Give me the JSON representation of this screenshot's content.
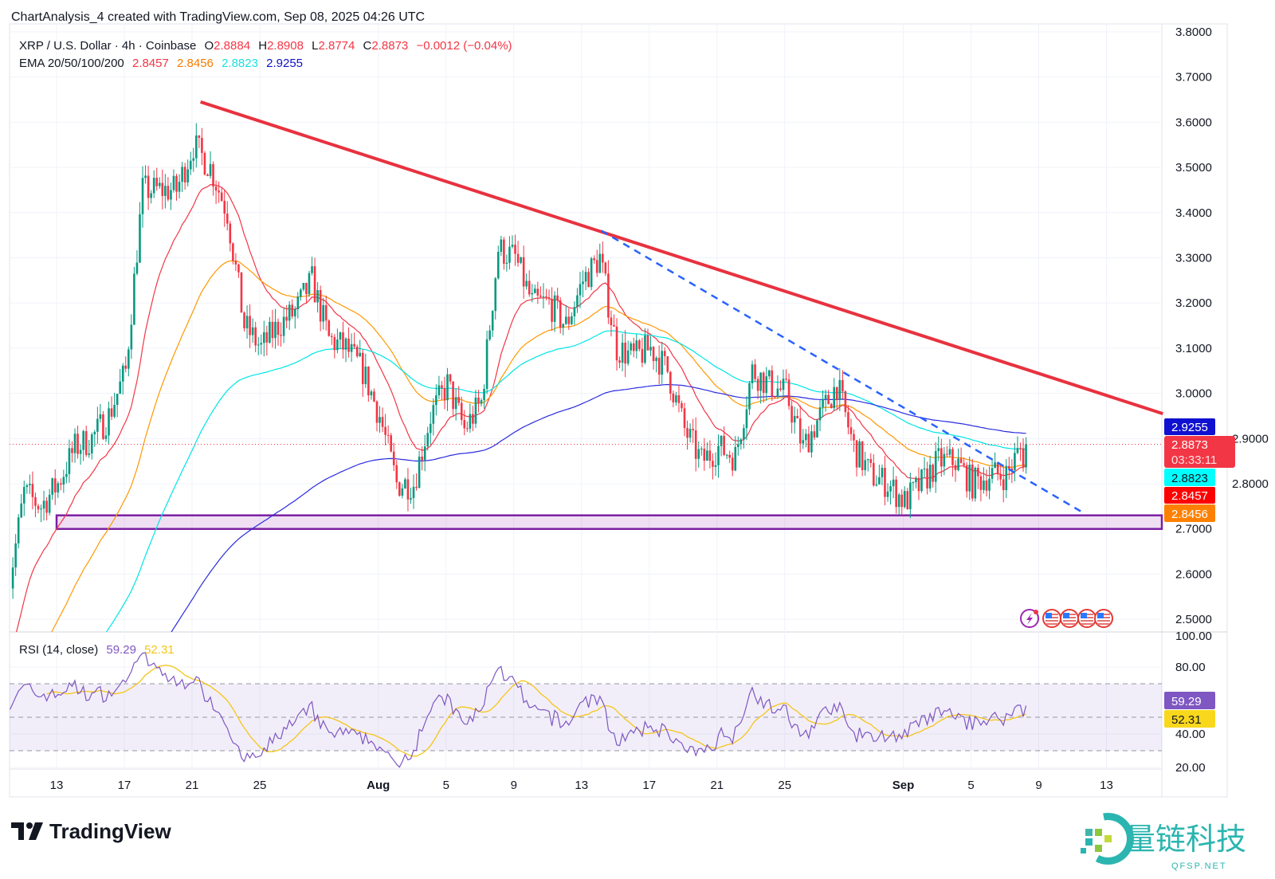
{
  "header": {
    "caption": "ChartAnalysis_4 created with TradingView.com, Sep 08, 2025 04:26 UTC",
    "symbol": "XRP / U.S. Dollar · 4h · Coinbase",
    "o_label": "O",
    "o": "2.8884",
    "h_label": "H",
    "h": "2.8908",
    "l_label": "L",
    "l": "2.8774",
    "c_label": "C",
    "c": "2.8873",
    "change": "−0.0012 (−0.04%)",
    "ema_label": "EMA 20/50/100/200",
    "ema20": "2.8457",
    "ema50": "2.8456",
    "ema100": "2.8823",
    "ema200": "2.9255",
    "rsi_label": "RSI (14, close)",
    "rsi": "59.29",
    "rsi_ma": "52.31"
  },
  "price_labels": {
    "ema200": "2.9255",
    "last": "2.8873",
    "countdown": "03:33:11",
    "ema100": "2.8823",
    "ema20": "2.8457",
    "ema50": "2.8456",
    "rsi": "59.29",
    "rsi_ma": "52.31"
  },
  "colors": {
    "up": "#089981",
    "down": "#f23645",
    "ema20": "#f23645",
    "ema50": "#ff9800",
    "ema100": "#00e5e5",
    "ema200": "#2a2ae0",
    "rsi": "#7e57c2",
    "rsi_ma": "#f5c518",
    "resistance": "#e8323f",
    "trend_dashed": "#2962ff",
    "support": "#7b1fa2"
  },
  "icons": [
    "lightning-event-icon",
    "us-flag-icon",
    "us-flag-icon",
    "us-flag-icon",
    "us-flag-icon"
  ],
  "branding": {
    "logo": "TradingView",
    "watermark": "量链科技",
    "watermark_sub": "QFSP.NET"
  },
  "chart_data": {
    "type": "candlestick",
    "interval": "4h",
    "y_ticks": [
      "3.8000",
      "3.7000",
      "3.6000",
      "3.5000",
      "3.4000",
      "3.3000",
      "3.2000",
      "3.1000",
      "3.0000",
      "2.9000",
      "2.8000",
      "2.7000",
      "2.6000",
      "2.5000"
    ],
    "ylim": [
      2.5,
      3.8
    ],
    "x_ticks": [
      {
        "date": "2025-07-13",
        "label": "13"
      },
      {
        "date": "2025-07-17",
        "label": "17"
      },
      {
        "date": "2025-07-21",
        "label": "21"
      },
      {
        "date": "2025-07-25",
        "label": "25"
      },
      {
        "date": "2025-08-01",
        "label": "Aug"
      },
      {
        "date": "2025-08-05",
        "label": "5"
      },
      {
        "date": "2025-08-09",
        "label": "9"
      },
      {
        "date": "2025-08-13",
        "label": "13"
      },
      {
        "date": "2025-08-17",
        "label": "17"
      },
      {
        "date": "2025-08-21",
        "label": "21"
      },
      {
        "date": "2025-08-25",
        "label": "25"
      },
      {
        "date": "2025-09-01",
        "label": "Sep"
      },
      {
        "date": "2025-09-05",
        "label": "5"
      },
      {
        "date": "2025-09-09",
        "label": "9"
      },
      {
        "date": "2025-09-13",
        "label": "13"
      }
    ],
    "approx_daily_close": [
      [
        "2025-07-10",
        2.55
      ],
      [
        "2025-07-11",
        2.78
      ],
      [
        "2025-07-12",
        2.75
      ],
      [
        "2025-07-13",
        2.8
      ],
      [
        "2025-07-14",
        2.88
      ],
      [
        "2025-07-15",
        2.9
      ],
      [
        "2025-07-16",
        2.95
      ],
      [
        "2025-07-17",
        3.05
      ],
      [
        "2025-07-18",
        3.45
      ],
      [
        "2025-07-19",
        3.45
      ],
      [
        "2025-07-20",
        3.45
      ],
      [
        "2025-07-21",
        3.55
      ],
      [
        "2025-07-22",
        3.5
      ],
      [
        "2025-07-23",
        3.4
      ],
      [
        "2025-07-24",
        3.15
      ],
      [
        "2025-07-25",
        3.1
      ],
      [
        "2025-07-26",
        3.15
      ],
      [
        "2025-07-27",
        3.18
      ],
      [
        "2025-07-28",
        3.25
      ],
      [
        "2025-07-29",
        3.12
      ],
      [
        "2025-07-30",
        3.1
      ],
      [
        "2025-07-31",
        3.05
      ],
      [
        "2025-08-01",
        2.95
      ],
      [
        "2025-08-02",
        2.8
      ],
      [
        "2025-08-03",
        2.8
      ],
      [
        "2025-08-04",
        2.95
      ],
      [
        "2025-08-05",
        3.02
      ],
      [
        "2025-08-06",
        2.92
      ],
      [
        "2025-08-07",
        2.98
      ],
      [
        "2025-08-08",
        3.32
      ],
      [
        "2025-08-09",
        3.3
      ],
      [
        "2025-08-10",
        3.2
      ],
      [
        "2025-08-11",
        3.2
      ],
      [
        "2025-08-12",
        3.15
      ],
      [
        "2025-08-13",
        3.25
      ],
      [
        "2025-08-14",
        3.3
      ],
      [
        "2025-08-15",
        3.1
      ],
      [
        "2025-08-16",
        3.08
      ],
      [
        "2025-08-17",
        3.1
      ],
      [
        "2025-08-18",
        3.05
      ],
      [
        "2025-08-19",
        2.92
      ],
      [
        "2025-08-20",
        2.85
      ],
      [
        "2025-08-21",
        2.88
      ],
      [
        "2025-08-22",
        2.86
      ],
      [
        "2025-08-23",
        3.05
      ],
      [
        "2025-08-24",
        3.02
      ],
      [
        "2025-08-25",
        3.0
      ],
      [
        "2025-08-26",
        2.88
      ],
      [
        "2025-08-27",
        2.95
      ],
      [
        "2025-08-28",
        3.02
      ],
      [
        "2025-08-29",
        2.88
      ],
      [
        "2025-08-30",
        2.82
      ],
      [
        "2025-08-31",
        2.8
      ],
      [
        "2025-09-01",
        2.76
      ],
      [
        "2025-09-02",
        2.8
      ],
      [
        "2025-09-03",
        2.85
      ],
      [
        "2025-09-04",
        2.85
      ],
      [
        "2025-09-05",
        2.8
      ],
      [
        "2025-09-06",
        2.82
      ],
      [
        "2025-09-07",
        2.82
      ],
      [
        "2025-09-08",
        2.8873
      ]
    ],
    "last_price": 2.8873,
    "resistance_line": [
      [
        "2025-07-21T12:00",
        3.645
      ],
      [
        "2025-09-16T08:00",
        2.955
      ]
    ],
    "dashed_trendline": [
      [
        "2025-08-14T04:00",
        3.36
      ],
      [
        "2025-09-11T16:00",
        2.735
      ]
    ],
    "support_zone": {
      "from": "2025-07-13",
      "low": 2.7,
      "high": 2.73
    },
    "rsi": {
      "ylim": [
        20,
        100
      ],
      "y_ticks": [
        "100.00",
        "80.00",
        "40.00",
        "20.00"
      ],
      "band": [
        30,
        70
      ],
      "mid": 50
    }
  }
}
